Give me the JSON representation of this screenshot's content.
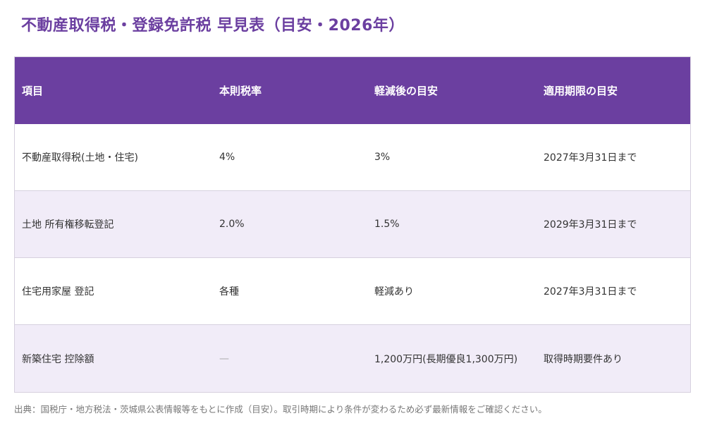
{
  "title": "不動産取得税・登録免許税 早見表（目安・2026年）",
  "table": {
    "headers": [
      "項目",
      "本則税率",
      "軽減後の目安",
      "適用期限の目安"
    ],
    "rows": [
      [
        "不動産取得税(土地・住宅)",
        "4%",
        "3%",
        "2027年3月31日まで"
      ],
      [
        "土地 所有権移転登記",
        "2.0%",
        "1.5%",
        "2029年3月31日まで"
      ],
      [
        "住宅用家屋 登記",
        "各種",
        "軽減あり",
        "2027年3月31日まで"
      ],
      [
        "新築住宅 控除額",
        "—",
        "1,200万円(長期優良1,300万円)",
        "取得時期要件あり"
      ]
    ]
  },
  "source": "出典：国税庁・地方税法・茨城県公表情報等をもとに作成（目安）。取引時期により条件が変わるため必ず最新情報をご確認ください。"
}
